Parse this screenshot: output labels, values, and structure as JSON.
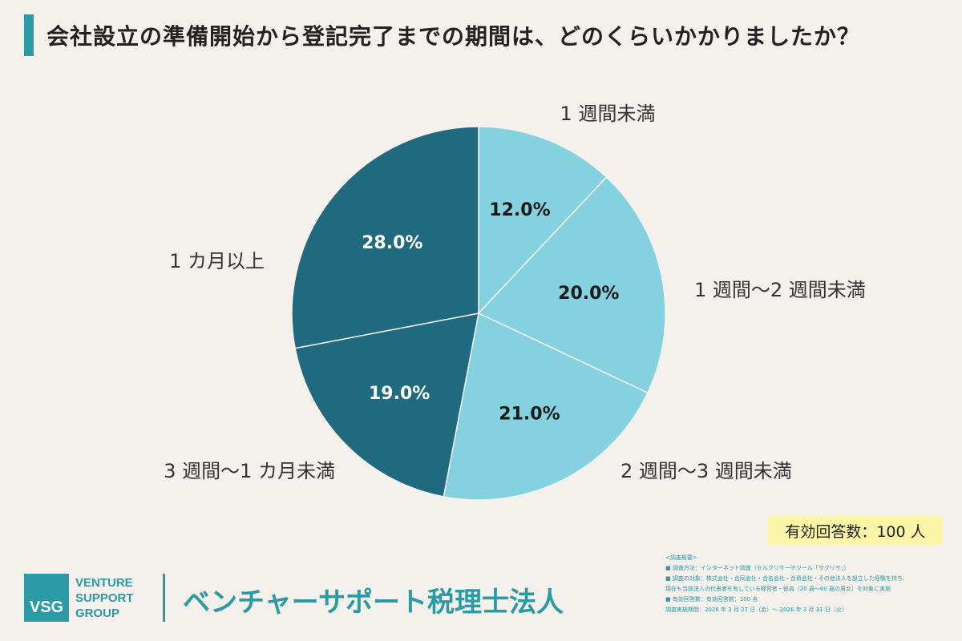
{
  "title": "会社設立の準備開始から登記完了までの期間は、どのくらいかかりましたか？",
  "colors": {
    "accent": "#2a9aa5",
    "light": "#84d1df",
    "dark": "#1f6a7e",
    "badge": "#fbf6a6"
  },
  "chart_data": {
    "type": "pie",
    "start": "12 o'clock",
    "direction": "clockwise",
    "categories": [
      "1 週間未満",
      "1 週間〜2 週間未満",
      "2 週間〜3 週間未満",
      "3 週間〜1 カ月未満",
      "1 カ月以上"
    ],
    "values": [
      12.0,
      20.0,
      21.0,
      19.0,
      28.0
    ],
    "value_labels": [
      "12.0%",
      "20.0%",
      "21.0%",
      "19.0%",
      "28.0%"
    ],
    "slice_colors": [
      "#84d1df",
      "#84d1df",
      "#84d1df",
      "#1f6a7e",
      "#1f6a7e"
    ],
    "label_colors": [
      "#1a1a1a",
      "#1a1a1a",
      "#1a1a1a",
      "#ffffff",
      "#ffffff"
    ]
  },
  "badge": "有効回答数：100 人",
  "logo": {
    "mark": "VSG",
    "words": [
      "VENTURE",
      "SUPPORT",
      "GROUP"
    ]
  },
  "company": "ベンチャーサポート税理士法人",
  "survey": {
    "heading": "<調査概要>",
    "lines": [
      "■ 調査方法：インターネット調査（セルフリサーチツール「サクリサ」）",
      "■ 調査の対象：株式会社・合同会社・合名会社・合資会社・その他法人を設立した経験を持ち、",
      "現在も当該法人の代表者を有している経営者・役員（20 歳〜60 歳の男女）を対象に実施",
      "■ 有効回答数：有効回答数：100 名",
      "調査実施期間：2026 年 3 月 27 日（金）〜 2026 年 3 月 31 日（火）"
    ]
  }
}
